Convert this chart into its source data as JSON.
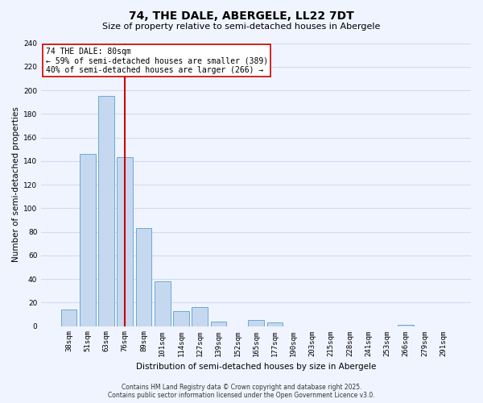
{
  "title": "74, THE DALE, ABERGELE, LL22 7DT",
  "subtitle": "Size of property relative to semi-detached houses in Abergele",
  "xlabel": "Distribution of semi-detached houses by size in Abergele",
  "ylabel": "Number of semi-detached properties",
  "categories": [
    "38sqm",
    "51sqm",
    "63sqm",
    "76sqm",
    "89sqm",
    "101sqm",
    "114sqm",
    "127sqm",
    "139sqm",
    "152sqm",
    "165sqm",
    "177sqm",
    "190sqm",
    "203sqm",
    "215sqm",
    "228sqm",
    "241sqm",
    "253sqm",
    "266sqm",
    "279sqm",
    "291sqm"
  ],
  "values": [
    14,
    146,
    195,
    143,
    83,
    38,
    13,
    16,
    4,
    0,
    5,
    3,
    0,
    0,
    0,
    0,
    0,
    0,
    1,
    0,
    0
  ],
  "bar_color": "#c5d8f0",
  "bar_edge_color": "#6aaad4",
  "vline_x_index": 3,
  "vline_color": "#cc0000",
  "annotation_line1": "74 THE DALE: 80sqm",
  "annotation_line2": "← 59% of semi-detached houses are smaller (389)",
  "annotation_line3": "40% of semi-detached houses are larger (266) →",
  "annotation_box_color": "#ffffff",
  "annotation_box_edge": "#cc0000",
  "ylim": [
    0,
    240
  ],
  "yticks": [
    0,
    20,
    40,
    60,
    80,
    100,
    120,
    140,
    160,
    180,
    200,
    220,
    240
  ],
  "footer_line1": "Contains HM Land Registry data © Crown copyright and database right 2025.",
  "footer_line2": "Contains public sector information licensed under the Open Government Licence v3.0.",
  "bg_color": "#f0f4ff",
  "grid_color": "#d0dcf0",
  "title_fontsize": 10,
  "subtitle_fontsize": 8,
  "ylabel_fontsize": 7.5,
  "xlabel_fontsize": 7.5,
  "tick_fontsize": 6.5,
  "footer_fontsize": 5.5
}
